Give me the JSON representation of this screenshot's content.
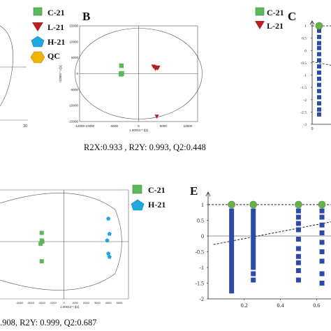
{
  "panels": {
    "B": {
      "letter": "B"
    },
    "C": {
      "letter": "C"
    },
    "E": {
      "letter": "E"
    }
  },
  "legend_top_left": [
    {
      "label": "C-21",
      "shape": "square",
      "color": "#5db85c"
    },
    {
      "label": "L-21",
      "shape": "triangle-down",
      "color": "#b22222"
    },
    {
      "label": "H-21",
      "shape": "pentagon",
      "color": "#1fa8e0"
    },
    {
      "label": "QC",
      "shape": "hexagon",
      "color": "#f0b400"
    }
  ],
  "legend_B": [
    {
      "label": "C-21",
      "shape": "square",
      "color": "#5db85c"
    },
    {
      "label": "L-21",
      "shape": "triangle-down",
      "color": "#b22222"
    }
  ],
  "legend_D": [
    {
      "label": "C-21",
      "shape": "square",
      "color": "#5db85c"
    },
    {
      "label": "H-21",
      "shape": "pentagon",
      "color": "#1fa8e0"
    }
  ],
  "metrics": {
    "B": "R2X:0.933 , R2Y: 0.993, Q2:0.448",
    "D": ".908, R2Y: 0.999, Q2:0.687"
  },
  "axis_text": {
    "A_tick": "30",
    "B_ylabel": "t1000t * o[1]",
    "B_xlabel": "1.00013 * t[1]",
    "D_xlabel": "1.00013 * t[1]"
  },
  "chart_data": [
    {
      "type": "scatter",
      "panel": "B",
      "xlabel": "1.00013 * t[1]",
      "ylabel": "t1000t * o[1]",
      "xlim": [
        -12000,
        12000
      ],
      "ylim": [
        -15000,
        15000
      ],
      "x_ticks": [
        "-12000",
        "-10000",
        "-5000",
        "0",
        "5000",
        "10000"
      ],
      "y_ticks": [
        "-15000",
        "-10000",
        "-5000",
        "0",
        "5000",
        "10000",
        "15000"
      ],
      "series": [
        {
          "name": "C-21",
          "color": "#5db85c",
          "shape": "square",
          "points": [
            [
              -3500,
              2500
            ],
            [
              -3500,
              0
            ],
            [
              -3600,
              -200
            ],
            [
              -3400,
              100
            ],
            [
              -3550,
              -100
            ],
            [
              -3450,
              50
            ]
          ]
        },
        {
          "name": "L-21",
          "color": "#b22222",
          "shape": "triangle-down",
          "points": [
            [
              3000,
              2200
            ],
            [
              3300,
              2000
            ],
            [
              3600,
              1800
            ],
            [
              3800,
              1600
            ],
            [
              3400,
              1500
            ],
            [
              4000,
              1900
            ],
            [
              3700,
              -13500
            ]
          ]
        }
      ]
    },
    {
      "type": "scatter",
      "panel": "C",
      "ylim": [
        -3,
        1.2
      ],
      "y_ticks": [
        "1",
        "0.5",
        "0",
        "-0.5",
        "-1",
        "-1.5",
        "-2",
        "-2.5",
        "-3"
      ],
      "x_ticks": [
        "0"
      ],
      "series": [
        {
          "name": "",
          "color": "#6ab04c",
          "shape": "circle",
          "points": [
            [
              0,
              1
            ]
          ]
        },
        {
          "name": "",
          "color": "#2f49a8",
          "shape": "square",
          "points": [
            [
              0,
              0.8
            ],
            [
              0,
              0.55
            ],
            [
              0,
              0.3
            ],
            [
              0,
              0.1
            ],
            [
              0,
              -0.15
            ],
            [
              0,
              -0.4
            ],
            [
              0,
              -0.65
            ],
            [
              0,
              -0.9
            ],
            [
              0,
              -1.15
            ],
            [
              0,
              -1.4
            ],
            [
              0,
              -1.65
            ],
            [
              0,
              -1.9
            ],
            [
              0,
              -2.15
            ],
            [
              0,
              -2.4
            ],
            [
              0,
              -2.6
            ]
          ]
        }
      ]
    },
    {
      "type": "scatter",
      "panel": "D",
      "xlabel": "1.00013 * t[1]",
      "xlim": [
        -5000,
        6000
      ],
      "x_ticks": [
        "-4000",
        "-3000",
        "-2000",
        "-1000",
        "0",
        "1000",
        "2000",
        "3000",
        "4000",
        "5000"
      ],
      "series": [
        {
          "name": "C-21",
          "color": "#5db85c",
          "shape": "square",
          "points": [
            [
              -2000,
              800
            ],
            [
              -2000,
              100
            ],
            [
              -2100,
              -200
            ],
            [
              -1950,
              0
            ],
            [
              -2000,
              -1800
            ]
          ]
        },
        {
          "name": "H-21",
          "color": "#1fa8e0",
          "shape": "pentagon",
          "points": [
            [
              4000,
              2100
            ],
            [
              4100,
              700
            ],
            [
              3900,
              100
            ],
            [
              4000,
              -1100
            ],
            [
              4100,
              -1400
            ]
          ]
        }
      ]
    },
    {
      "type": "scatter",
      "panel": "E",
      "xlim": [
        0,
        0.68
      ],
      "ylim": [
        -2,
        1.2
      ],
      "x_ticks": [
        "0.2",
        "0.4",
        "0.6"
      ],
      "y_ticks": [
        "1",
        "0.5",
        "0",
        "-0.5",
        "-1",
        "-1.5",
        "-2"
      ],
      "series": [
        {
          "name": "",
          "color": "#6ab04c",
          "shape": "circle",
          "points": [
            [
              0.13,
              1
            ],
            [
              0.25,
              1
            ],
            [
              0.5,
              1
            ],
            [
              0.63,
              1
            ]
          ]
        },
        {
          "name": "",
          "color": "#2f49a8",
          "shape": "square",
          "points": [
            [
              0.13,
              0.8
            ],
            [
              0.13,
              0.65
            ],
            [
              0.13,
              0.5
            ],
            [
              0.13,
              0.35
            ],
            [
              0.13,
              0.2
            ],
            [
              0.13,
              0.05
            ],
            [
              0.13,
              -0.1
            ],
            [
              0.13,
              -0.25
            ],
            [
              0.13,
              -0.4
            ],
            [
              0.13,
              -0.55
            ],
            [
              0.13,
              -0.7
            ],
            [
              0.13,
              -0.85
            ],
            [
              0.13,
              -1.0
            ],
            [
              0.13,
              -1.15
            ],
            [
              0.13,
              -1.3
            ],
            [
              0.13,
              -1.45
            ],
            [
              0.13,
              -1.6
            ],
            [
              0.13,
              -1.75
            ],
            [
              0.25,
              0.8
            ],
            [
              0.25,
              0.65
            ],
            [
              0.25,
              0.5
            ],
            [
              0.25,
              0.35
            ],
            [
              0.25,
              0.2
            ],
            [
              0.25,
              0.05
            ],
            [
              0.25,
              -0.1
            ],
            [
              0.25,
              -0.25
            ],
            [
              0.25,
              -0.4
            ],
            [
              0.25,
              -0.55
            ],
            [
              0.25,
              -0.7
            ],
            [
              0.25,
              -0.85
            ],
            [
              0.25,
              -1.0
            ],
            [
              0.25,
              -1.2
            ],
            [
              0.25,
              -1.4
            ],
            [
              0.5,
              0.8
            ],
            [
              0.5,
              0.6
            ],
            [
              0.5,
              0.4
            ],
            [
              0.5,
              0.2
            ],
            [
              0.5,
              -0.1
            ],
            [
              0.5,
              -0.4
            ],
            [
              0.5,
              -0.65
            ],
            [
              0.5,
              -0.85
            ],
            [
              0.5,
              -1.1
            ],
            [
              0.5,
              -1.4
            ],
            [
              0.63,
              0.8
            ],
            [
              0.63,
              0.6
            ],
            [
              0.63,
              0.35
            ],
            [
              0.63,
              0.1
            ],
            [
              0.63,
              -0.2
            ],
            [
              0.63,
              -0.5
            ],
            [
              0.63,
              -0.8
            ],
            [
              0.63,
              -1.2
            ],
            [
              0.63,
              -1.5
            ]
          ]
        }
      ]
    }
  ]
}
